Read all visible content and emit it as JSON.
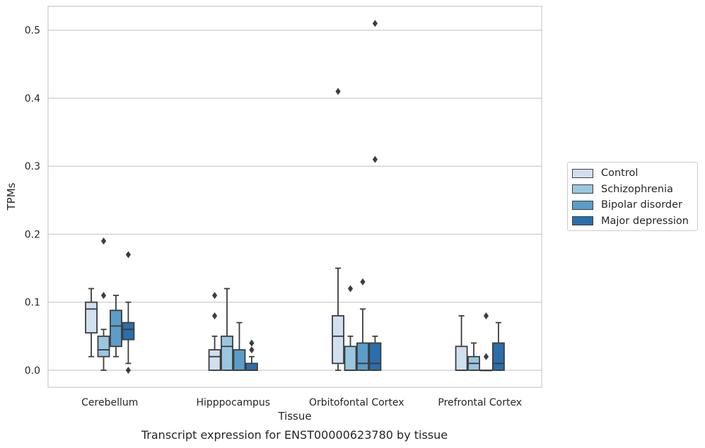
{
  "chart_data": {
    "type": "box",
    "title": "",
    "caption": "Transcript expression for ENST00000623780 by tissue",
    "xlabel": "Tissue",
    "ylabel": "TPMs",
    "ylim": [
      -0.025,
      0.535
    ],
    "yticks": [
      0.0,
      0.1,
      0.2,
      0.3,
      0.4,
      0.5
    ],
    "ytick_labels": [
      "0.0",
      "0.1",
      "0.2",
      "0.3",
      "0.4",
      "0.5"
    ],
    "grid": "horizontal",
    "legend_position": "right",
    "categories": [
      "Cerebellum",
      "Hipppocampus",
      "Orbitofontal Cortex",
      "Prefrontal Cortex"
    ],
    "series": [
      {
        "name": "Control",
        "color": "#d0e0f0",
        "boxes": [
          {
            "whisker_low": 0.02,
            "q1": 0.055,
            "median": 0.09,
            "q3": 0.1,
            "whisker_high": 0.12,
            "outliers": []
          },
          {
            "whisker_low": 0.0,
            "q1": 0.0,
            "median": 0.02,
            "q3": 0.03,
            "whisker_high": 0.05,
            "outliers": [
              0.08,
              0.11
            ]
          },
          {
            "whisker_low": 0.0,
            "q1": 0.01,
            "median": 0.05,
            "q3": 0.08,
            "whisker_high": 0.15,
            "outliers": [
              0.41
            ]
          },
          {
            "whisker_low": 0.0,
            "q1": 0.0,
            "median": 0.0,
            "q3": 0.035,
            "whisker_high": 0.08,
            "outliers": []
          }
        ]
      },
      {
        "name": "Schizophrenia",
        "color": "#9ac7e0",
        "boxes": [
          {
            "whisker_low": 0.0,
            "q1": 0.02,
            "median": 0.03,
            "q3": 0.05,
            "whisker_high": 0.06,
            "outliers": [
              0.11,
              0.19
            ]
          },
          {
            "whisker_low": 0.0,
            "q1": 0.0,
            "median": 0.035,
            "q3": 0.05,
            "whisker_high": 0.12,
            "outliers": []
          },
          {
            "whisker_low": 0.0,
            "q1": 0.0,
            "median": 0.0,
            "q3": 0.035,
            "whisker_high": 0.05,
            "outliers": [
              0.12
            ]
          },
          {
            "whisker_low": 0.0,
            "q1": 0.0,
            "median": 0.01,
            "q3": 0.02,
            "whisker_high": 0.04,
            "outliers": []
          }
        ]
      },
      {
        "name": "Bipolar disorder",
        "color": "#5b9cc9",
        "boxes": [
          {
            "whisker_low": 0.02,
            "q1": 0.035,
            "median": 0.065,
            "q3": 0.088,
            "whisker_high": 0.11,
            "outliers": []
          },
          {
            "whisker_low": 0.0,
            "q1": 0.0,
            "median": 0.0,
            "q3": 0.03,
            "whisker_high": 0.07,
            "outliers": []
          },
          {
            "whisker_low": 0.0,
            "q1": 0.0,
            "median": 0.01,
            "q3": 0.04,
            "whisker_high": 0.09,
            "outliers": [
              0.13
            ]
          },
          {
            "whisker_low": 0.0,
            "q1": 0.0,
            "median": 0.0,
            "q3": 0.0,
            "whisker_high": 0.0,
            "outliers": [
              0.02,
              0.08
            ]
          }
        ]
      },
      {
        "name": "Major depression",
        "color": "#2a6eac",
        "boxes": [
          {
            "whisker_low": 0.01,
            "q1": 0.045,
            "median": 0.06,
            "q3": 0.07,
            "whisker_high": 0.1,
            "outliers": [
              0.0,
              0.17
            ]
          },
          {
            "whisker_low": 0.0,
            "q1": 0.0,
            "median": 0.0,
            "q3": 0.01,
            "whisker_high": 0.02,
            "outliers": [
              0.03,
              0.04
            ]
          },
          {
            "whisker_low": 0.0,
            "q1": 0.0,
            "median": 0.01,
            "q3": 0.04,
            "whisker_high": 0.05,
            "outliers": [
              0.31,
              0.51
            ]
          },
          {
            "whisker_low": 0.0,
            "q1": 0.0,
            "median": 0.01,
            "q3": 0.04,
            "whisker_high": 0.07,
            "outliers": []
          }
        ]
      }
    ]
  }
}
